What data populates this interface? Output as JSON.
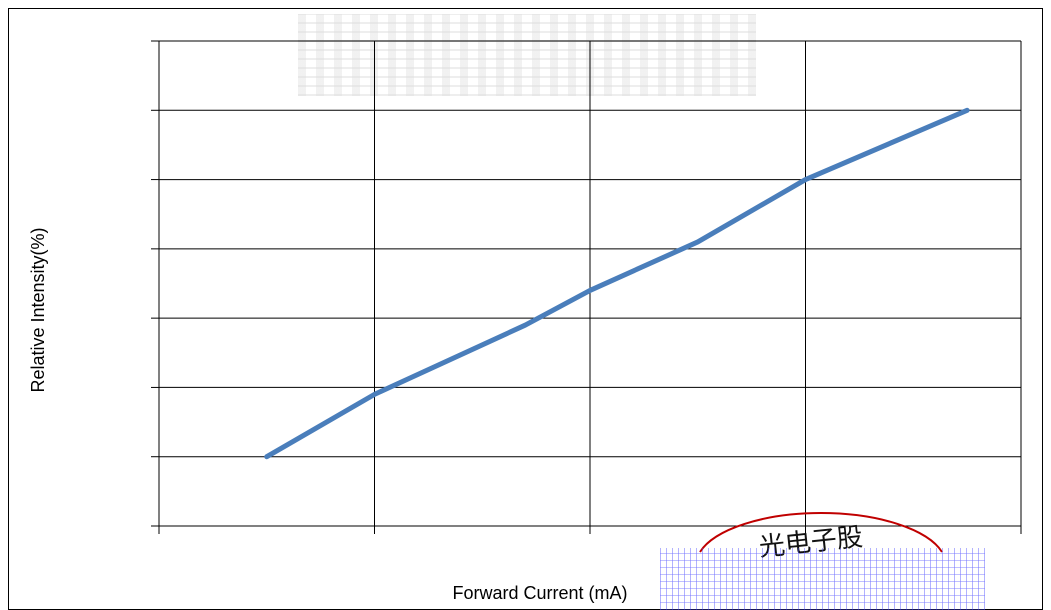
{
  "chart_data": {
    "type": "line",
    "xlabel": "Forward Current  (mA)",
    "ylabel": "Relative Intensity(%)",
    "grid": true,
    "xlim": [
      0,
      4
    ],
    "ylim": [
      0,
      7
    ],
    "series": [
      {
        "color": "#4a7ebb",
        "points": [
          [
            0.5,
            1.0
          ],
          [
            1.0,
            1.9
          ],
          [
            1.7,
            2.9
          ],
          [
            2.0,
            3.4
          ],
          [
            2.5,
            4.1
          ],
          [
            3.0,
            5.0
          ],
          [
            3.75,
            6.0
          ]
        ]
      }
    ],
    "stamp": {
      "text": "光电子股"
    }
  }
}
